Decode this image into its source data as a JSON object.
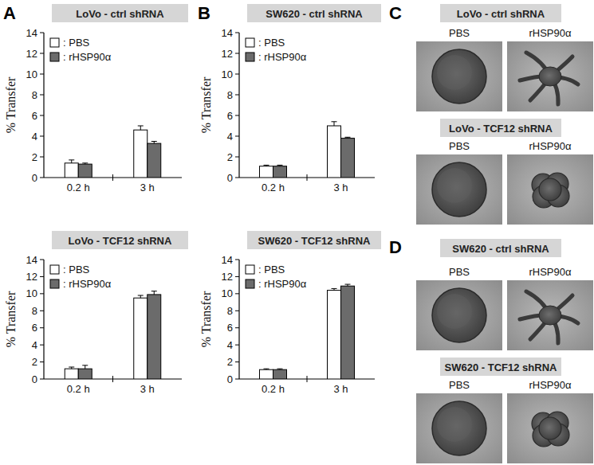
{
  "chart_data": [
    {
      "type": "bar",
      "title": "LoVo - ctrl shRNA",
      "y_label": "% Transfer",
      "categories": [
        "0.2 h",
        "3 h"
      ],
      "series": [
        {
          "name": ": PBS",
          "color": "#ffffff",
          "values": [
            1.4,
            4.6
          ],
          "errors": [
            0.3,
            0.4
          ]
        },
        {
          "name": ": rHSP90α",
          "color": "#6b6b6b",
          "values": [
            1.3,
            3.3
          ],
          "errors": [
            0.1,
            0.2
          ]
        }
      ],
      "ylim": [
        0,
        14
      ],
      "yticks": [
        0,
        2,
        4,
        6,
        8,
        10,
        12,
        14
      ],
      "grid": false,
      "legend": "upper left"
    },
    {
      "type": "bar",
      "title": "LoVo - TCF12 shRNA",
      "y_label": "% Transfer",
      "categories": [
        "0.2 h",
        "3 h"
      ],
      "series": [
        {
          "name": ": PBS",
          "color": "#ffffff",
          "values": [
            1.2,
            9.5
          ],
          "errors": [
            0.2,
            0.3
          ]
        },
        {
          "name": ": rHSP90α",
          "color": "#6b6b6b",
          "values": [
            1.2,
            9.9
          ],
          "errors": [
            0.4,
            0.4
          ]
        }
      ],
      "ylim": [
        0,
        14
      ],
      "yticks": [
        0,
        2,
        4,
        6,
        8,
        10,
        12,
        14
      ],
      "grid": false,
      "legend": "upper left"
    },
    {
      "type": "bar",
      "title": "SW620 - ctrl shRNA",
      "y_label": "% Transfer",
      "categories": [
        "0.2 h",
        "3 h"
      ],
      "series": [
        {
          "name": ": PBS",
          "color": "#ffffff",
          "values": [
            1.1,
            5.0
          ],
          "errors": [
            0.1,
            0.4
          ]
        },
        {
          "name": ": rHSP90α",
          "color": "#6b6b6b",
          "values": [
            1.1,
            3.8
          ],
          "errors": [
            0.1,
            0.1
          ]
        }
      ],
      "ylim": [
        0,
        14
      ],
      "yticks": [
        0,
        2,
        4,
        6,
        8,
        10,
        12,
        14
      ],
      "grid": false,
      "legend": "upper left"
    },
    {
      "type": "bar",
      "title": "SW620 - TCF12 shRNA",
      "y_label": "% Transfer",
      "categories": [
        "0.2 h",
        "3 h"
      ],
      "series": [
        {
          "name": ": PBS",
          "color": "#ffffff",
          "values": [
            1.1,
            10.4
          ],
          "errors": [
            0.1,
            0.2
          ]
        },
        {
          "name": ": rHSP90α",
          "color": "#6b6b6b",
          "values": [
            1.1,
            10.9
          ],
          "errors": [
            0.1,
            0.2
          ]
        }
      ],
      "ylim": [
        0,
        14
      ],
      "yticks": [
        0,
        2,
        4,
        6,
        8,
        10,
        12,
        14
      ],
      "grid": false,
      "legend": "upper left"
    }
  ],
  "panels": [
    {
      "label": "A"
    },
    {
      "label": "B"
    },
    {
      "label": "C",
      "groups": [
        {
          "title": "LoVo - ctrl shRNA",
          "conditions": [
            "PBS",
            "rHSP90α"
          ]
        },
        {
          "title": "LoVo - TCF12 shRNA",
          "conditions": [
            "PBS",
            "rHSP90α"
          ]
        }
      ]
    },
    {
      "label": "D",
      "groups": [
        {
          "title": "SW620 - ctrl shRNA",
          "conditions": [
            "PBS",
            "rHSP90α"
          ]
        },
        {
          "title": "SW620 - TCF12 shRNA",
          "conditions": [
            "PBS",
            "rHSP90α"
          ]
        }
      ]
    }
  ]
}
